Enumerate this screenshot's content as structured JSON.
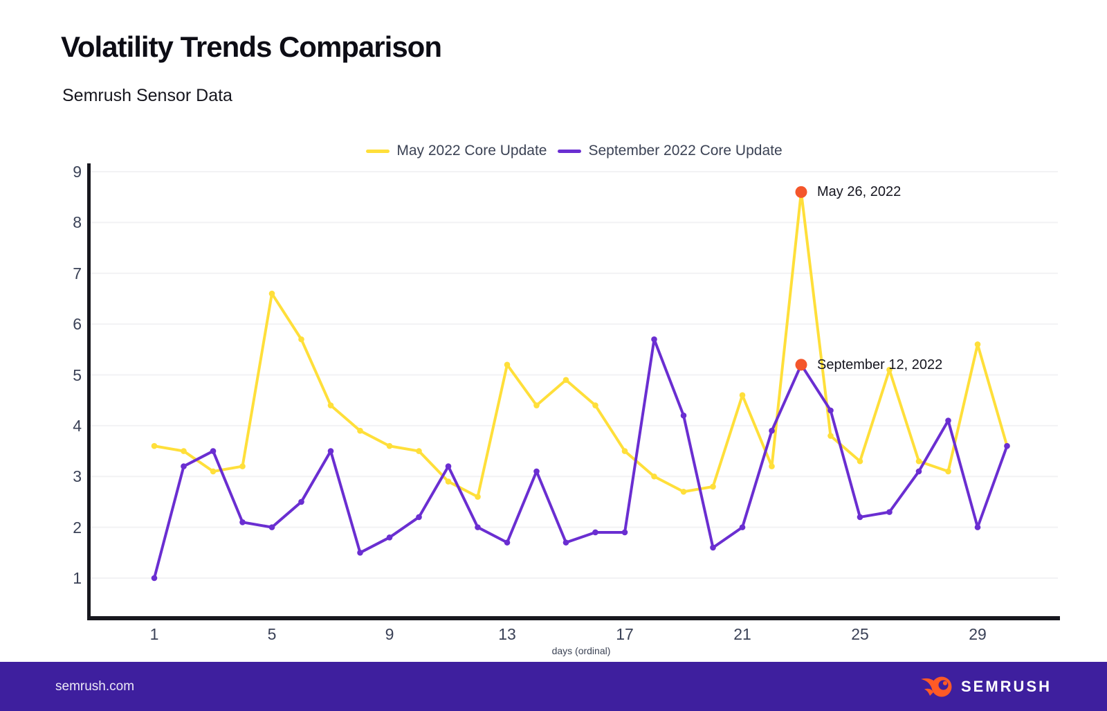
{
  "header": {
    "title": "Volatility Trends Comparison",
    "subtitle": "Semrush Sensor Data"
  },
  "chart_data": {
    "type": "line",
    "title": "Volatility Trends Comparison",
    "subtitle": "Semrush Sensor Data",
    "xlabel": "days (ordinal)",
    "ylabel": "",
    "x": [
      1,
      2,
      3,
      4,
      5,
      6,
      7,
      8,
      9,
      10,
      11,
      12,
      13,
      14,
      15,
      16,
      17,
      18,
      19,
      20,
      21,
      22,
      23,
      24,
      25,
      26,
      27,
      28,
      29,
      30
    ],
    "x_ticks": [
      1,
      5,
      9,
      13,
      17,
      21,
      25,
      29
    ],
    "y_ticks": [
      1,
      2,
      3,
      4,
      5,
      6,
      7,
      8,
      9
    ],
    "ylim": [
      0.5,
      9
    ],
    "grid": "horizontal",
    "legend_position": "top-center",
    "series": [
      {
        "name": "May 2022 Core Update",
        "color": "#FFDF3A",
        "values": [
          3.6,
          3.5,
          3.1,
          3.2,
          6.6,
          5.7,
          4.4,
          3.9,
          3.6,
          3.5,
          2.9,
          2.6,
          5.2,
          4.4,
          4.9,
          4.4,
          3.5,
          3.0,
          2.7,
          2.8,
          4.6,
          3.2,
          8.6,
          3.8,
          3.3,
          5.1,
          3.3,
          3.1,
          5.6,
          3.6
        ]
      },
      {
        "name": "September 2022 Core Update",
        "color": "#6A2ED1",
        "values": [
          1.0,
          3.2,
          3.5,
          2.1,
          2.0,
          2.5,
          3.5,
          1.5,
          1.8,
          2.2,
          3.2,
          2.0,
          1.7,
          3.1,
          1.7,
          1.9,
          1.9,
          5.7,
          4.2,
          1.6,
          2.0,
          3.9,
          5.2,
          4.3,
          2.2,
          2.3,
          3.1,
          4.1,
          2.0,
          3.6
        ]
      }
    ],
    "annotations": [
      {
        "label": "May 26, 2022",
        "series": "May 2022 Core Update",
        "x": 23,
        "y": 8.6,
        "dot_color": "#F4562B"
      },
      {
        "label": "September 12, 2022",
        "series": "September 2022 Core Update",
        "x": 23,
        "y": 5.2,
        "dot_color": "#F4562B"
      }
    ]
  },
  "footer": {
    "site": "semrush.com",
    "logo_text": "SEMRUSH",
    "background": "#3E1F9E",
    "logo_color": "#FF5A26"
  },
  "colors": {
    "accent_orange": "#F4562B",
    "series_yellow": "#FFDF3A",
    "series_purple": "#6A2ED1",
    "footer_purple": "#3E1F9E",
    "text_dark": "#15151d",
    "text_slate": "#3B4254",
    "grid": "#F2F2F4",
    "axis": "#17171E",
    "background": "#FFFFFF"
  }
}
